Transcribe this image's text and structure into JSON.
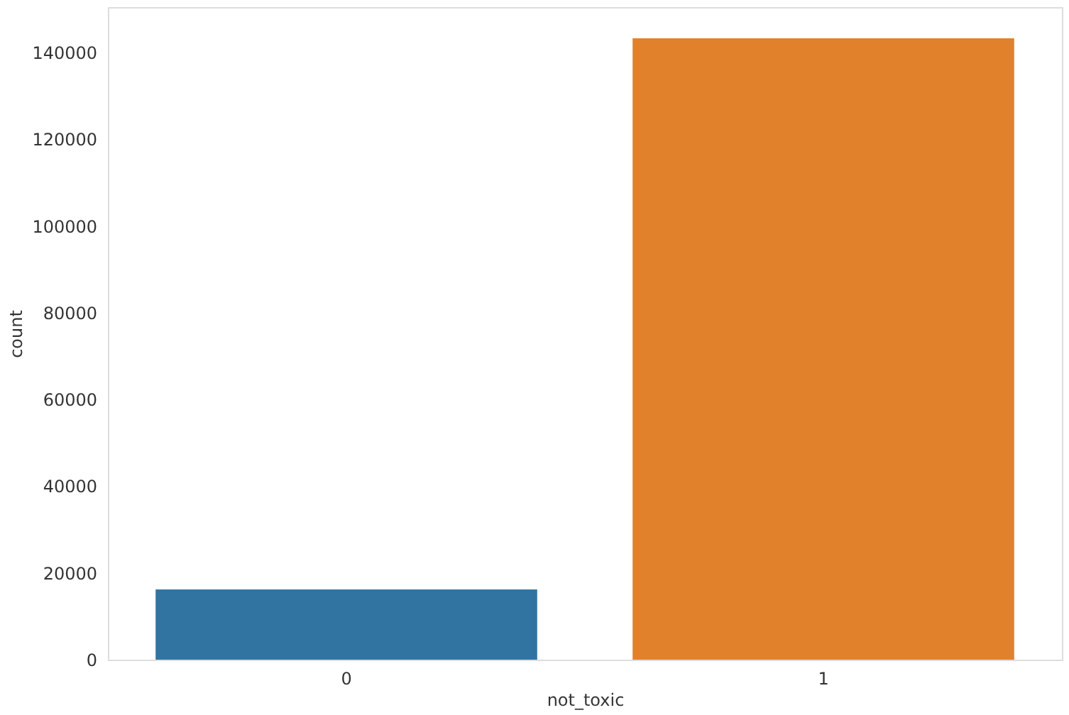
{
  "chart_data": {
    "type": "bar",
    "xlabel": "not_toxic",
    "ylabel": "count",
    "categories": [
      "0",
      "1"
    ],
    "values": [
      16200,
      143300
    ],
    "colors": [
      "#3274a1",
      "#e1812c"
    ],
    "ylim": [
      0,
      150500
    ],
    "yticks": [
      0,
      20000,
      40000,
      60000,
      80000,
      100000,
      120000,
      140000
    ],
    "grid": false
  }
}
